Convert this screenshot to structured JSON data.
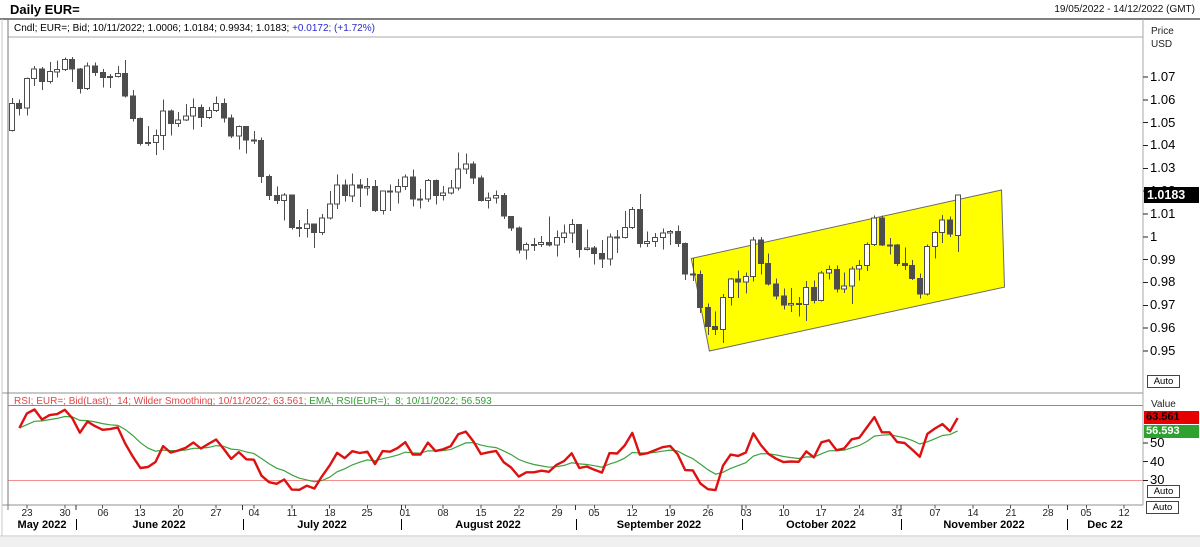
{
  "header": {
    "title": "Daily EUR=",
    "date_range": "19/05/2022 - 14/12/2022 (GMT)"
  },
  "main_pane": {
    "legend_black": "Cndl; EUR=; Bid; 10/11/2022; 1.0006; 1.0184; 0.9934; 1.0183; ",
    "legend_blue": "+0.0172; (+1.72%)",
    "axis_title_1": "Price",
    "axis_title_2": "USD",
    "last_price_badge": "1.0183",
    "auto_label": "Auto"
  },
  "rsi_pane": {
    "legend_red": "RSI; EUR=; Bid(Last);  14; Wilder Smoothing; 10/11/2022; 63.561; ",
    "legend_green": "EMA; RSI(EUR=);  8; 10/11/2022; 56.593",
    "axis_title": "Value",
    "badge_rsi": "63.561",
    "badge_ema": "56.593",
    "auto_label": "Auto"
  },
  "x_axis": {
    "auto_label": "Auto",
    "weeks": [
      {
        "label": "23",
        "slot": 2
      },
      {
        "label": "30",
        "slot": 7
      },
      {
        "label": "06",
        "slot": 12
      },
      {
        "label": "13",
        "slot": 17
      },
      {
        "label": "20",
        "slot": 22
      },
      {
        "label": "27",
        "slot": 27
      },
      {
        "label": "04",
        "slot": 32
      },
      {
        "label": "11",
        "slot": 37
      },
      {
        "label": "18",
        "slot": 42
      },
      {
        "label": "25",
        "slot": 47
      },
      {
        "label": "01",
        "slot": 52
      },
      {
        "label": "08",
        "slot": 57
      },
      {
        "label": "15",
        "slot": 62
      },
      {
        "label": "22",
        "slot": 67
      },
      {
        "label": "29",
        "slot": 72
      },
      {
        "label": "05",
        "slot": 77
      },
      {
        "label": "12",
        "slot": 82
      },
      {
        "label": "19",
        "slot": 87
      },
      {
        "label": "26",
        "slot": 92
      },
      {
        "label": "03",
        "slot": 97
      },
      {
        "label": "10",
        "slot": 102
      },
      {
        "label": "17",
        "slot": 107
      },
      {
        "label": "24",
        "slot": 112
      },
      {
        "label": "31",
        "slot": 117
      },
      {
        "label": "07",
        "slot": 122
      },
      {
        "label": "14",
        "slot": 127
      },
      {
        "label": "21",
        "slot": 132
      },
      {
        "label": "28",
        "slot": 137
      },
      {
        "label": "05",
        "slot": 142
      },
      {
        "label": "12",
        "slot": 147
      }
    ],
    "months": [
      {
        "label": "May 2022",
        "center": 4.5,
        "boundary": null
      },
      {
        "label": "June 2022",
        "center": 20,
        "boundary": 9
      },
      {
        "label": "July 2022",
        "center": 41.5,
        "boundary": 31
      },
      {
        "label": "August 2022",
        "center": 63.5,
        "boundary": 52
      },
      {
        "label": "September 2022",
        "center": 86,
        "boundary": 75
      },
      {
        "label": "October 2022",
        "center": 107.5,
        "boundary": 97
      },
      {
        "label": "November 2022",
        "center": 129,
        "boundary": 118
      },
      {
        "label": "Dec 22",
        "center": 145,
        "boundary": 140
      }
    ]
  },
  "colors": {
    "accent_blue": "#2929cc",
    "candle": "#4d4d4d",
    "candle_up_fill": "#ffffff",
    "channel_fill": "#ffff00",
    "channel_border": "#6a6a6a",
    "rsi_line": "#dd1111",
    "ema_line": "#3da23d",
    "level_70": "#e06868",
    "level_30": "#f29090",
    "legend_red": "#e04848",
    "legend_green": "#2fa12f",
    "badge_rsi_bg": "#e60000",
    "badge_rsi_text": "#000000",
    "badge_ema_bg": "#2fa12f",
    "badge_ema_text": "#ffffff",
    "price_badge_bg": "#000000",
    "price_badge_text": "#ffffff"
  },
  "chart_data": {
    "type": "candlestick",
    "instrument": "EUR=",
    "interval": "Daily",
    "price_axis_label": "Price USD",
    "price_ticks": [
      "1.07",
      "1.06",
      "1.05",
      "1.04",
      "1.03",
      "1.02",
      "1.01",
      "1",
      "0.99",
      "0.98",
      "0.97",
      "0.96",
      "0.95"
    ],
    "rsi_ticks": [
      "50",
      "40",
      "30"
    ],
    "rsi_levels": [
      70,
      30
    ],
    "rsi": {
      "period": 14,
      "smoothing": "Wilder",
      "last": 63.561,
      "ema_period": 8,
      "ema_last": 56.593,
      "date": "10/11/2022"
    },
    "last_candle": {
      "date": "10/11/2022",
      "open": 1.0006,
      "high": 1.0184,
      "low": 0.9934,
      "close": 1.0183,
      "change": "+0.0172",
      "change_pct": "+1.72%"
    },
    "channel": {
      "fill": "#ffff00",
      "points_slot_price": [
        [
          90.3,
          0.9905
        ],
        [
          131.3,
          1.0205
        ],
        [
          131.7,
          0.978
        ],
        [
          92.7,
          0.95
        ]
      ]
    },
    "candles": [
      [
        "19/05",
        1.0465,
        1.0607,
        1.0461,
        1.0585
      ],
      [
        "20/05",
        1.0585,
        1.0601,
        1.0532,
        1.0563
      ],
      [
        "23/05",
        1.0565,
        1.0697,
        1.0532,
        1.0693
      ],
      [
        "24/05",
        1.0693,
        1.0748,
        1.0661,
        1.0735
      ],
      [
        "25/05",
        1.0735,
        1.0744,
        1.0642,
        1.068
      ],
      [
        "26/05",
        1.068,
        1.0765,
        1.0671,
        1.0723
      ],
      [
        "27/05",
        1.0723,
        1.0773,
        1.0697,
        1.0733
      ],
      [
        "30/05",
        1.0733,
        1.0786,
        1.0727,
        1.0777
      ],
      [
        "31/05",
        1.0777,
        1.0787,
        1.0678,
        1.0734
      ],
      [
        "01/06",
        1.0734,
        1.0739,
        1.0627,
        1.065
      ],
      [
        "02/06",
        1.065,
        1.0764,
        1.0642,
        1.0748
      ],
      [
        "03/06",
        1.0748,
        1.0764,
        1.0704,
        1.072
      ],
      [
        "06/06",
        1.072,
        1.0734,
        1.0653,
        1.0697
      ],
      [
        "07/06",
        1.0697,
        1.0713,
        1.0652,
        1.0703
      ],
      [
        "08/06",
        1.0703,
        1.0749,
        1.0698,
        1.0716
      ],
      [
        "09/06",
        1.0716,
        1.0774,
        1.0611,
        1.0617
      ],
      [
        "10/06",
        1.0617,
        1.0643,
        1.0505,
        1.0518
      ],
      [
        "13/06",
        1.0518,
        1.0523,
        1.0399,
        1.0408
      ],
      [
        "14/06",
        1.0408,
        1.0485,
        1.0397,
        1.0414
      ],
      [
        "15/06",
        1.0414,
        1.0471,
        1.0359,
        1.0444
      ],
      [
        "16/06",
        1.0444,
        1.0601,
        1.0381,
        1.0551
      ],
      [
        "17/06",
        1.0551,
        1.0557,
        1.0443,
        1.0496
      ],
      [
        "20/06",
        1.0496,
        1.0546,
        1.0481,
        1.0511
      ],
      [
        "21/06",
        1.0511,
        1.0582,
        1.0508,
        1.053
      ],
      [
        "22/06",
        1.053,
        1.0605,
        1.0469,
        1.0566
      ],
      [
        "23/06",
        1.0566,
        1.058,
        1.0482,
        1.0523
      ],
      [
        "24/06",
        1.0523,
        1.0568,
        1.0516,
        1.0553
      ],
      [
        "27/06",
        1.0553,
        1.0615,
        1.0547,
        1.0583
      ],
      [
        "28/06",
        1.0583,
        1.0606,
        1.05,
        1.052
      ],
      [
        "29/06",
        1.052,
        1.0535,
        1.0432,
        1.0442
      ],
      [
        "30/06",
        1.0442,
        1.0488,
        1.0382,
        1.0484
      ],
      [
        "01/07",
        1.0484,
        1.0486,
        1.0365,
        1.0425
      ],
      [
        "04/07",
        1.0425,
        1.0463,
        1.0406,
        1.0422
      ],
      [
        "05/07",
        1.0422,
        1.0436,
        1.0235,
        1.0265
      ],
      [
        "06/07",
        1.0265,
        1.0274,
        1.0162,
        1.0181
      ],
      [
        "07/07",
        1.0181,
        1.0221,
        1.0144,
        1.016
      ],
      [
        "08/07",
        1.016,
        1.0192,
        1.0071,
        1.0183
      ],
      [
        "11/07",
        1.0183,
        1.0185,
        1.0032,
        1.004
      ],
      [
        "12/07",
        1.004,
        1.0074,
        0.9999,
        1.0036
      ],
      [
        "13/07",
        1.0036,
        1.0122,
        0.9998,
        1.0057
      ],
      [
        "14/07",
        1.0057,
        1.0059,
        0.9952,
        1.0019
      ],
      [
        "15/07",
        1.0019,
        1.0101,
        1.0007,
        1.0082
      ],
      [
        "18/07",
        1.0082,
        1.0201,
        1.0076,
        1.0144
      ],
      [
        "19/07",
        1.0144,
        1.0273,
        1.0121,
        1.0227
      ],
      [
        "20/07",
        1.0227,
        1.0251,
        1.0155,
        1.018
      ],
      [
        "21/07",
        1.018,
        1.0278,
        1.0152,
        1.0228
      ],
      [
        "22/07",
        1.0228,
        1.0254,
        1.013,
        1.0213
      ],
      [
        "25/07",
        1.0213,
        1.0258,
        1.018,
        1.0221
      ],
      [
        "26/07",
        1.0221,
        1.0249,
        1.0108,
        1.0115
      ],
      [
        "27/07",
        1.0115,
        1.0204,
        1.0097,
        1.0201
      ],
      [
        "28/07",
        1.0201,
        1.023,
        1.0113,
        1.0196
      ],
      [
        "29/07",
        1.0196,
        1.0254,
        1.0145,
        1.0221
      ],
      [
        "01/08",
        1.0221,
        1.0274,
        1.0206,
        1.0261
      ],
      [
        "02/08",
        1.0261,
        1.0294,
        1.0133,
        1.0166
      ],
      [
        "03/08",
        1.0166,
        1.0209,
        1.0123,
        1.0166
      ],
      [
        "04/08",
        1.0166,
        1.0254,
        1.0152,
        1.0246
      ],
      [
        "05/08",
        1.0246,
        1.0252,
        1.0141,
        1.0181
      ],
      [
        "08/08",
        1.0181,
        1.0222,
        1.0159,
        1.0193
      ],
      [
        "09/08",
        1.0193,
        1.0248,
        1.0185,
        1.0213
      ],
      [
        "10/08",
        1.0213,
        1.0369,
        1.0203,
        1.0298
      ],
      [
        "11/08",
        1.0298,
        1.0365,
        1.0276,
        1.0319
      ],
      [
        "12/08",
        1.0319,
        1.0329,
        1.0232,
        1.0257
      ],
      [
        "15/08",
        1.0257,
        1.0269,
        1.0154,
        1.016
      ],
      [
        "16/08",
        1.016,
        1.0195,
        1.0125,
        1.0171
      ],
      [
        "17/08",
        1.0171,
        1.0203,
        1.0146,
        1.018
      ],
      [
        "18/08",
        1.018,
        1.0191,
        1.0078,
        1.009
      ],
      [
        "19/08",
        1.009,
        1.0092,
        1.0026,
        1.0039
      ],
      [
        "22/08",
        1.0039,
        1.0046,
        0.9926,
        0.9943
      ],
      [
        "23/08",
        0.9943,
        0.9976,
        0.99,
        0.9967
      ],
      [
        "24/08",
        0.9967,
        0.9994,
        0.9939,
        0.9967
      ],
      [
        "25/08",
        0.9967,
        1.0003,
        0.9956,
        0.9975
      ],
      [
        "26/08",
        0.9975,
        1.009,
        0.9957,
        0.9965
      ],
      [
        "29/08",
        0.9965,
        1.0027,
        0.9914,
        0.9998
      ],
      [
        "30/08",
        0.9998,
        1.0055,
        0.9972,
        1.0016
      ],
      [
        "31/08",
        1.0016,
        1.0079,
        0.9972,
        1.0054
      ],
      [
        "01/09",
        1.0054,
        1.0055,
        0.991,
        0.9945
      ],
      [
        "02/09",
        0.9945,
        1.0033,
        0.9941,
        0.9952
      ],
      [
        "05/09",
        0.9952,
        0.996,
        0.9878,
        0.9926
      ],
      [
        "06/09",
        0.9926,
        0.9986,
        0.9864,
        0.9903
      ],
      [
        "07/09",
        0.9903,
        1.0015,
        0.9875,
        0.9999
      ],
      [
        "08/09",
        0.9999,
        1.0029,
        0.993,
        0.9996
      ],
      [
        "09/09",
        0.9996,
        1.0113,
        0.9993,
        1.004
      ],
      [
        "12/09",
        1.004,
        1.013,
        1.0035,
        1.012
      ],
      [
        "13/09",
        1.012,
        1.0187,
        0.9954,
        0.997
      ],
      [
        "14/09",
        0.997,
        1.0023,
        0.9955,
        0.9979
      ],
      [
        "15/09",
        0.9979,
        1.0017,
        0.9955,
        0.9997
      ],
      [
        "16/09",
        0.9997,
        1.0036,
        0.9944,
        1.0016
      ],
      [
        "19/09",
        1.0016,
        1.0029,
        0.9964,
        1.0023
      ],
      [
        "20/09",
        1.0023,
        1.005,
        0.9955,
        0.997
      ],
      [
        "21/09",
        0.997,
        0.9976,
        0.9812,
        0.9838
      ],
      [
        "22/09",
        0.9838,
        0.9907,
        0.9807,
        0.9835
      ],
      [
        "23/09",
        0.9835,
        0.9852,
        0.9667,
        0.969
      ],
      [
        "26/09",
        0.969,
        0.9709,
        0.9569,
        0.9608
      ],
      [
        "27/09",
        0.9608,
        0.9672,
        0.957,
        0.9594
      ],
      [
        "28/09",
        0.9594,
        0.975,
        0.9536,
        0.9735
      ],
      [
        "29/09",
        0.9735,
        0.9819,
        0.97,
        0.9815
      ],
      [
        "30/09",
        0.9815,
        0.9853,
        0.9733,
        0.9802
      ],
      [
        "03/10",
        0.9802,
        0.9844,
        0.9751,
        0.9826
      ],
      [
        "04/10",
        0.9826,
        0.9999,
        0.9804,
        0.9986
      ],
      [
        "05/10",
        0.9986,
        0.9999,
        0.9835,
        0.9884
      ],
      [
        "06/10",
        0.9884,
        0.9926,
        0.9787,
        0.9794
      ],
      [
        "07/10",
        0.9794,
        0.9817,
        0.9726,
        0.9741
      ],
      [
        "10/10",
        0.9741,
        0.9774,
        0.9681,
        0.9702
      ],
      [
        "11/10",
        0.9702,
        0.9776,
        0.967,
        0.9707
      ],
      [
        "12/10",
        0.9707,
        0.9737,
        0.965,
        0.9704
      ],
      [
        "13/10",
        0.9704,
        0.9807,
        0.9632,
        0.9777
      ],
      [
        "14/10",
        0.9777,
        0.9808,
        0.9709,
        0.9721
      ],
      [
        "17/10",
        0.9721,
        0.9851,
        0.9717,
        0.9841
      ],
      [
        "18/10",
        0.9841,
        0.9875,
        0.9813,
        0.9858
      ],
      [
        "19/10",
        0.9858,
        0.9874,
        0.9756,
        0.9772
      ],
      [
        "20/10",
        0.9772,
        0.9844,
        0.9754,
        0.9785
      ],
      [
        "21/10",
        0.9785,
        0.9871,
        0.9705,
        0.986
      ],
      [
        "24/10",
        0.986,
        0.9899,
        0.9808,
        0.9874
      ],
      [
        "25/10",
        0.9874,
        0.9976,
        0.985,
        0.9967
      ],
      [
        "26/10",
        0.9967,
        1.0093,
        0.9959,
        1.0082
      ],
      [
        "27/10",
        1.0082,
        1.0094,
        0.9959,
        0.9965
      ],
      [
        "28/10",
        0.9965,
        0.9994,
        0.9923,
        0.9965
      ],
      [
        "31/10",
        0.9965,
        0.9968,
        0.9872,
        0.9884
      ],
      [
        "01/11",
        0.9884,
        0.9953,
        0.9854,
        0.9875
      ],
      [
        "02/11",
        0.9875,
        0.9898,
        0.9812,
        0.9818
      ],
      [
        "03/11",
        0.9818,
        0.984,
        0.973,
        0.9749
      ],
      [
        "04/11",
        0.9749,
        0.9967,
        0.9742,
        0.9957
      ],
      [
        "07/11",
        0.9957,
        1.0026,
        0.9905,
        1.002
      ],
      [
        "08/11",
        1.002,
        1.0096,
        0.9972,
        1.0073
      ],
      [
        "09/11",
        1.0073,
        1.0089,
        0.9999,
        1.0012
      ],
      [
        "10/11",
        1.0006,
        1.0184,
        0.9934,
        1.0183
      ]
    ]
  }
}
